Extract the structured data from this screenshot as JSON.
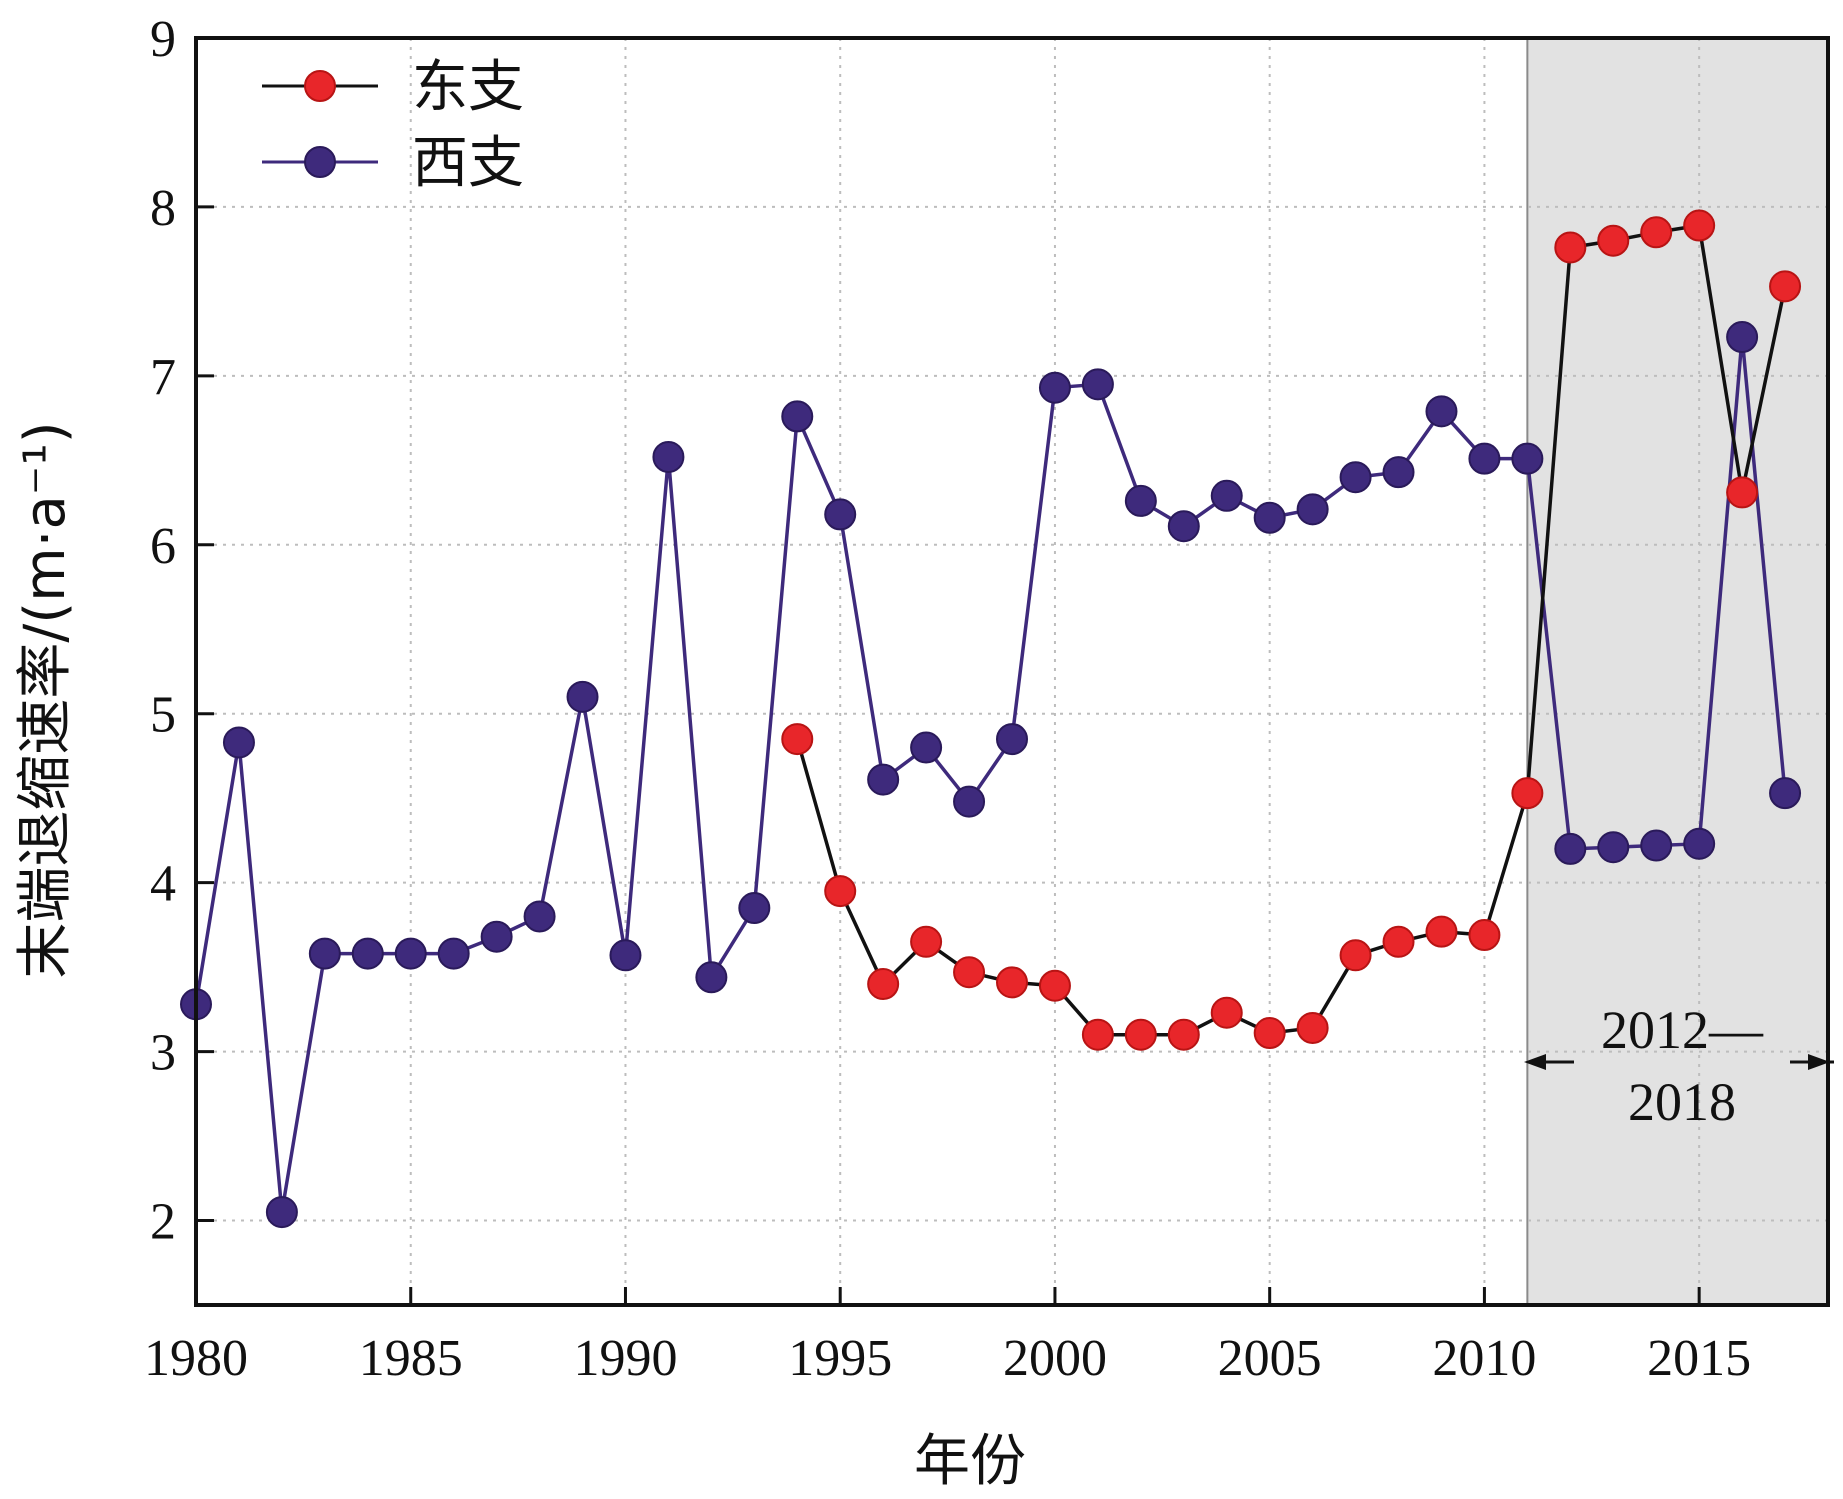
{
  "chart_data": {
    "type": "line",
    "xlabel": "年份",
    "ylabel": "末端退缩速率/(m·a⁻¹)",
    "xlim": [
      1980,
      2018
    ],
    "ylim": [
      1.5,
      9
    ],
    "x_ticks": [
      "1980",
      "1985",
      "1990",
      "1995",
      "2000",
      "2005",
      "2010",
      "2015"
    ],
    "y_ticks": [
      "2",
      "3",
      "4",
      "5",
      "6",
      "7",
      "8",
      "9"
    ],
    "grid": true,
    "legend_position": "top-left",
    "colors": {
      "east": "#e8262a",
      "east_line": "#111111",
      "west": "#3e2a7c",
      "west_line": "#3e2a7c",
      "shade": "#e2e2e2"
    },
    "shaded_region": {
      "x_start": 2011,
      "x_end": 2018,
      "label_line1": "2012—",
      "label_line2": "2018"
    },
    "series": [
      {
        "name": "东支",
        "x": [
          1994,
          1995,
          1996,
          1997,
          1998,
          1999,
          2000,
          2001,
          2002,
          2003,
          2004,
          2005,
          2006,
          2007,
          2008,
          2009,
          2010,
          2011,
          2012,
          2013,
          2014,
          2015,
          2016,
          2017
        ],
        "values": [
          4.85,
          3.95,
          3.4,
          3.65,
          3.47,
          3.41,
          3.39,
          3.1,
          3.1,
          3.1,
          3.23,
          3.11,
          3.14,
          3.57,
          3.65,
          3.71,
          3.69,
          4.53,
          7.76,
          7.8,
          7.85,
          7.89,
          6.31,
          7.53
        ]
      },
      {
        "name": "西支",
        "x": [
          1980,
          1981,
          1982,
          1983,
          1984,
          1985,
          1986,
          1987,
          1988,
          1989,
          1990,
          1991,
          1992,
          1993,
          1994,
          1995,
          1996,
          1997,
          1998,
          1999,
          2000,
          2001,
          2002,
          2003,
          2004,
          2005,
          2006,
          2007,
          2008,
          2009,
          2010,
          2011,
          2012,
          2013,
          2014,
          2015,
          2016,
          2017
        ],
        "values": [
          3.28,
          4.83,
          2.05,
          3.58,
          3.58,
          3.58,
          3.58,
          3.68,
          3.8,
          5.1,
          3.57,
          6.52,
          3.44,
          3.85,
          6.76,
          6.18,
          4.61,
          4.8,
          4.48,
          4.85,
          6.93,
          6.95,
          6.26,
          6.11,
          6.29,
          6.16,
          6.21,
          6.4,
          6.43,
          6.79,
          6.51,
          6.51,
          4.2,
          4.21,
          4.22,
          4.23,
          7.23,
          4.53
        ]
      }
    ]
  }
}
